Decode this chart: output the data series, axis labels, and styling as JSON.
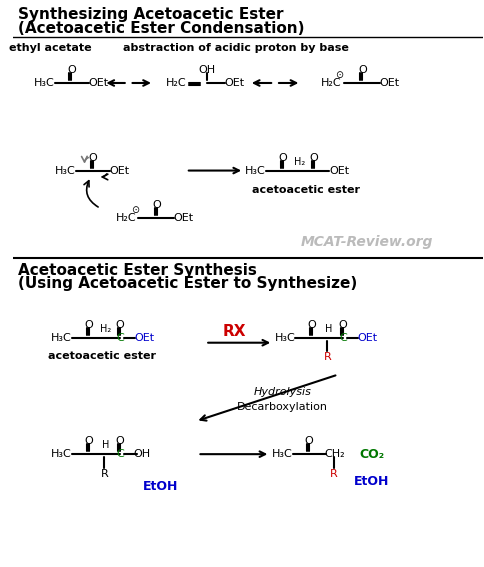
{
  "title1_line1": "Synthesizing Acetoacetic Ester",
  "title1_line2": "(Acetoacetic Ester Condensation)",
  "title2_line1": "Acetoacetic Ester Synthesis",
  "title2_line2": "(Using Acetoacetic Ester to Synthesize)",
  "label_ethyl_acetate": "ethyl acetate",
  "label_abstraction": "abstraction of acidic proton by base",
  "label_acetoacetic_ester1": "acetoacetic ester",
  "label_acetoacetic_ester2": "acetoacetic ester",
  "label_rx": "RX",
  "label_hydrolysis": "Hydrolysis",
  "label_decarboxylation": "Decarboxylation",
  "label_etoh1": "EtOH",
  "label_etoh2": "EtOH",
  "label_co2": "CO₂",
  "watermark": "MCAT-Review.org",
  "bg_color": "#ffffff",
  "text_color": "#000000",
  "red_color": "#cc0000",
  "blue_color": "#0000cc",
  "green_color": "#007700",
  "gray_color": "#888888",
  "watermark_color": "#bbbbbb"
}
